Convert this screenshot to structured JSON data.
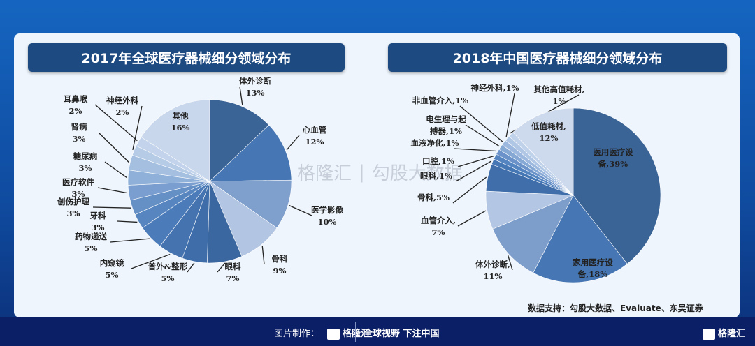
{
  "chart_data": [
    {
      "type": "pie",
      "title": "2017年全球医疗器械细分领域分布",
      "unit": "%",
      "slices": [
        {
          "name": "体外诊断",
          "value": 13,
          "color": "#3a6396"
        },
        {
          "name": "心血管",
          "value": 12,
          "color": "#4676b3"
        },
        {
          "name": "医学影像",
          "value": 10,
          "color": "#7f9fcc"
        },
        {
          "name": "骨科",
          "value": 9,
          "color": "#b2c5e2"
        },
        {
          "name": "眼科",
          "value": 7,
          "color": "#3b67a0"
        },
        {
          "name": "普外&整形",
          "value": 5,
          "color": "#3e6da9"
        },
        {
          "name": "内窥镜",
          "value": 5,
          "color": "#4473b0"
        },
        {
          "name": "药物递送",
          "value": 5,
          "color": "#4b7bb9"
        },
        {
          "name": "牙科",
          "value": 3,
          "color": "#5785c0"
        },
        {
          "name": "创伤护理",
          "value": 3,
          "color": "#6590c6"
        },
        {
          "name": "医疗软件",
          "value": 3,
          "color": "#7a9ecf"
        },
        {
          "name": "糖尿病",
          "value": 3,
          "color": "#8fb0d8"
        },
        {
          "name": "肾病",
          "value": 3,
          "color": "#a4bfe0"
        },
        {
          "name": "神经外科",
          "value": 2,
          "color": "#b6cbe6"
        },
        {
          "name": "耳鼻喉",
          "value": 2,
          "color": "#c2d3eb"
        },
        {
          "name": "其他",
          "value": 16,
          "color": "#c9d7ec"
        }
      ]
    },
    {
      "type": "pie",
      "title": "2018年中国医疗器械细分领域分布",
      "unit": "%",
      "slices": [
        {
          "name": "医用医疗设备",
          "value": 39,
          "color": "#3a6396",
          "lines": [
            "医用医疗设",
            "备,39%"
          ]
        },
        {
          "name": "家用医疗设备",
          "value": 18,
          "color": "#4676b3",
          "lines": [
            "家用医疗设",
            "备,18%"
          ]
        },
        {
          "name": "体外诊断",
          "value": 11,
          "color": "#7d9dcb",
          "lines": [
            "体外诊断,",
            "11%"
          ]
        },
        {
          "name": "血管介入",
          "value": 7,
          "color": "#b3c6e3",
          "lines": [
            "血管介入,",
            "7%"
          ]
        },
        {
          "name": "骨科",
          "value": 5,
          "color": "#3f6eab",
          "lines": [
            "骨科,5%"
          ]
        },
        {
          "name": "眼科",
          "value": 1,
          "color": "#4677b5",
          "lines": [
            "眼科,1%"
          ]
        },
        {
          "name": "口腔",
          "value": 1,
          "color": "#5585c1",
          "lines": [
            "口腔,1%"
          ]
        },
        {
          "name": "血液净化",
          "value": 1,
          "color": "#6b93c9",
          "lines": [
            "血液净化,1%"
          ]
        },
        {
          "name": "电生理与起搏器",
          "value": 1,
          "color": "#86a8d5",
          "lines": [
            "电生理与起",
            "搏器,1%"
          ]
        },
        {
          "name": "非血管介入",
          "value": 1,
          "color": "#9cb8de",
          "lines": [
            "非血管介入,1%"
          ]
        },
        {
          "name": "神经外科",
          "value": 1,
          "color": "#b0c6e5",
          "lines": [
            "神经外科,1%"
          ]
        },
        {
          "name": "其他高值耗材",
          "value": 1,
          "color": "#c0d2ea",
          "lines": [
            "其他高值耗材,",
            "1%"
          ]
        },
        {
          "name": "低值耗材",
          "value": 12,
          "color": "#cdd9ec",
          "lines": [
            "低值耗材,",
            "12%"
          ]
        }
      ]
    }
  ],
  "source": "数据支持：勾股大数据、Evaluate、东吴证券",
  "watermark": {
    "brand": "格隆汇",
    "text": "勾股大数据"
  },
  "footer": {
    "made_by": "图片制作：",
    "brand": "格隆汇",
    "slogan": "全球视野 下注中国",
    "brand_right": "格隆汇"
  }
}
